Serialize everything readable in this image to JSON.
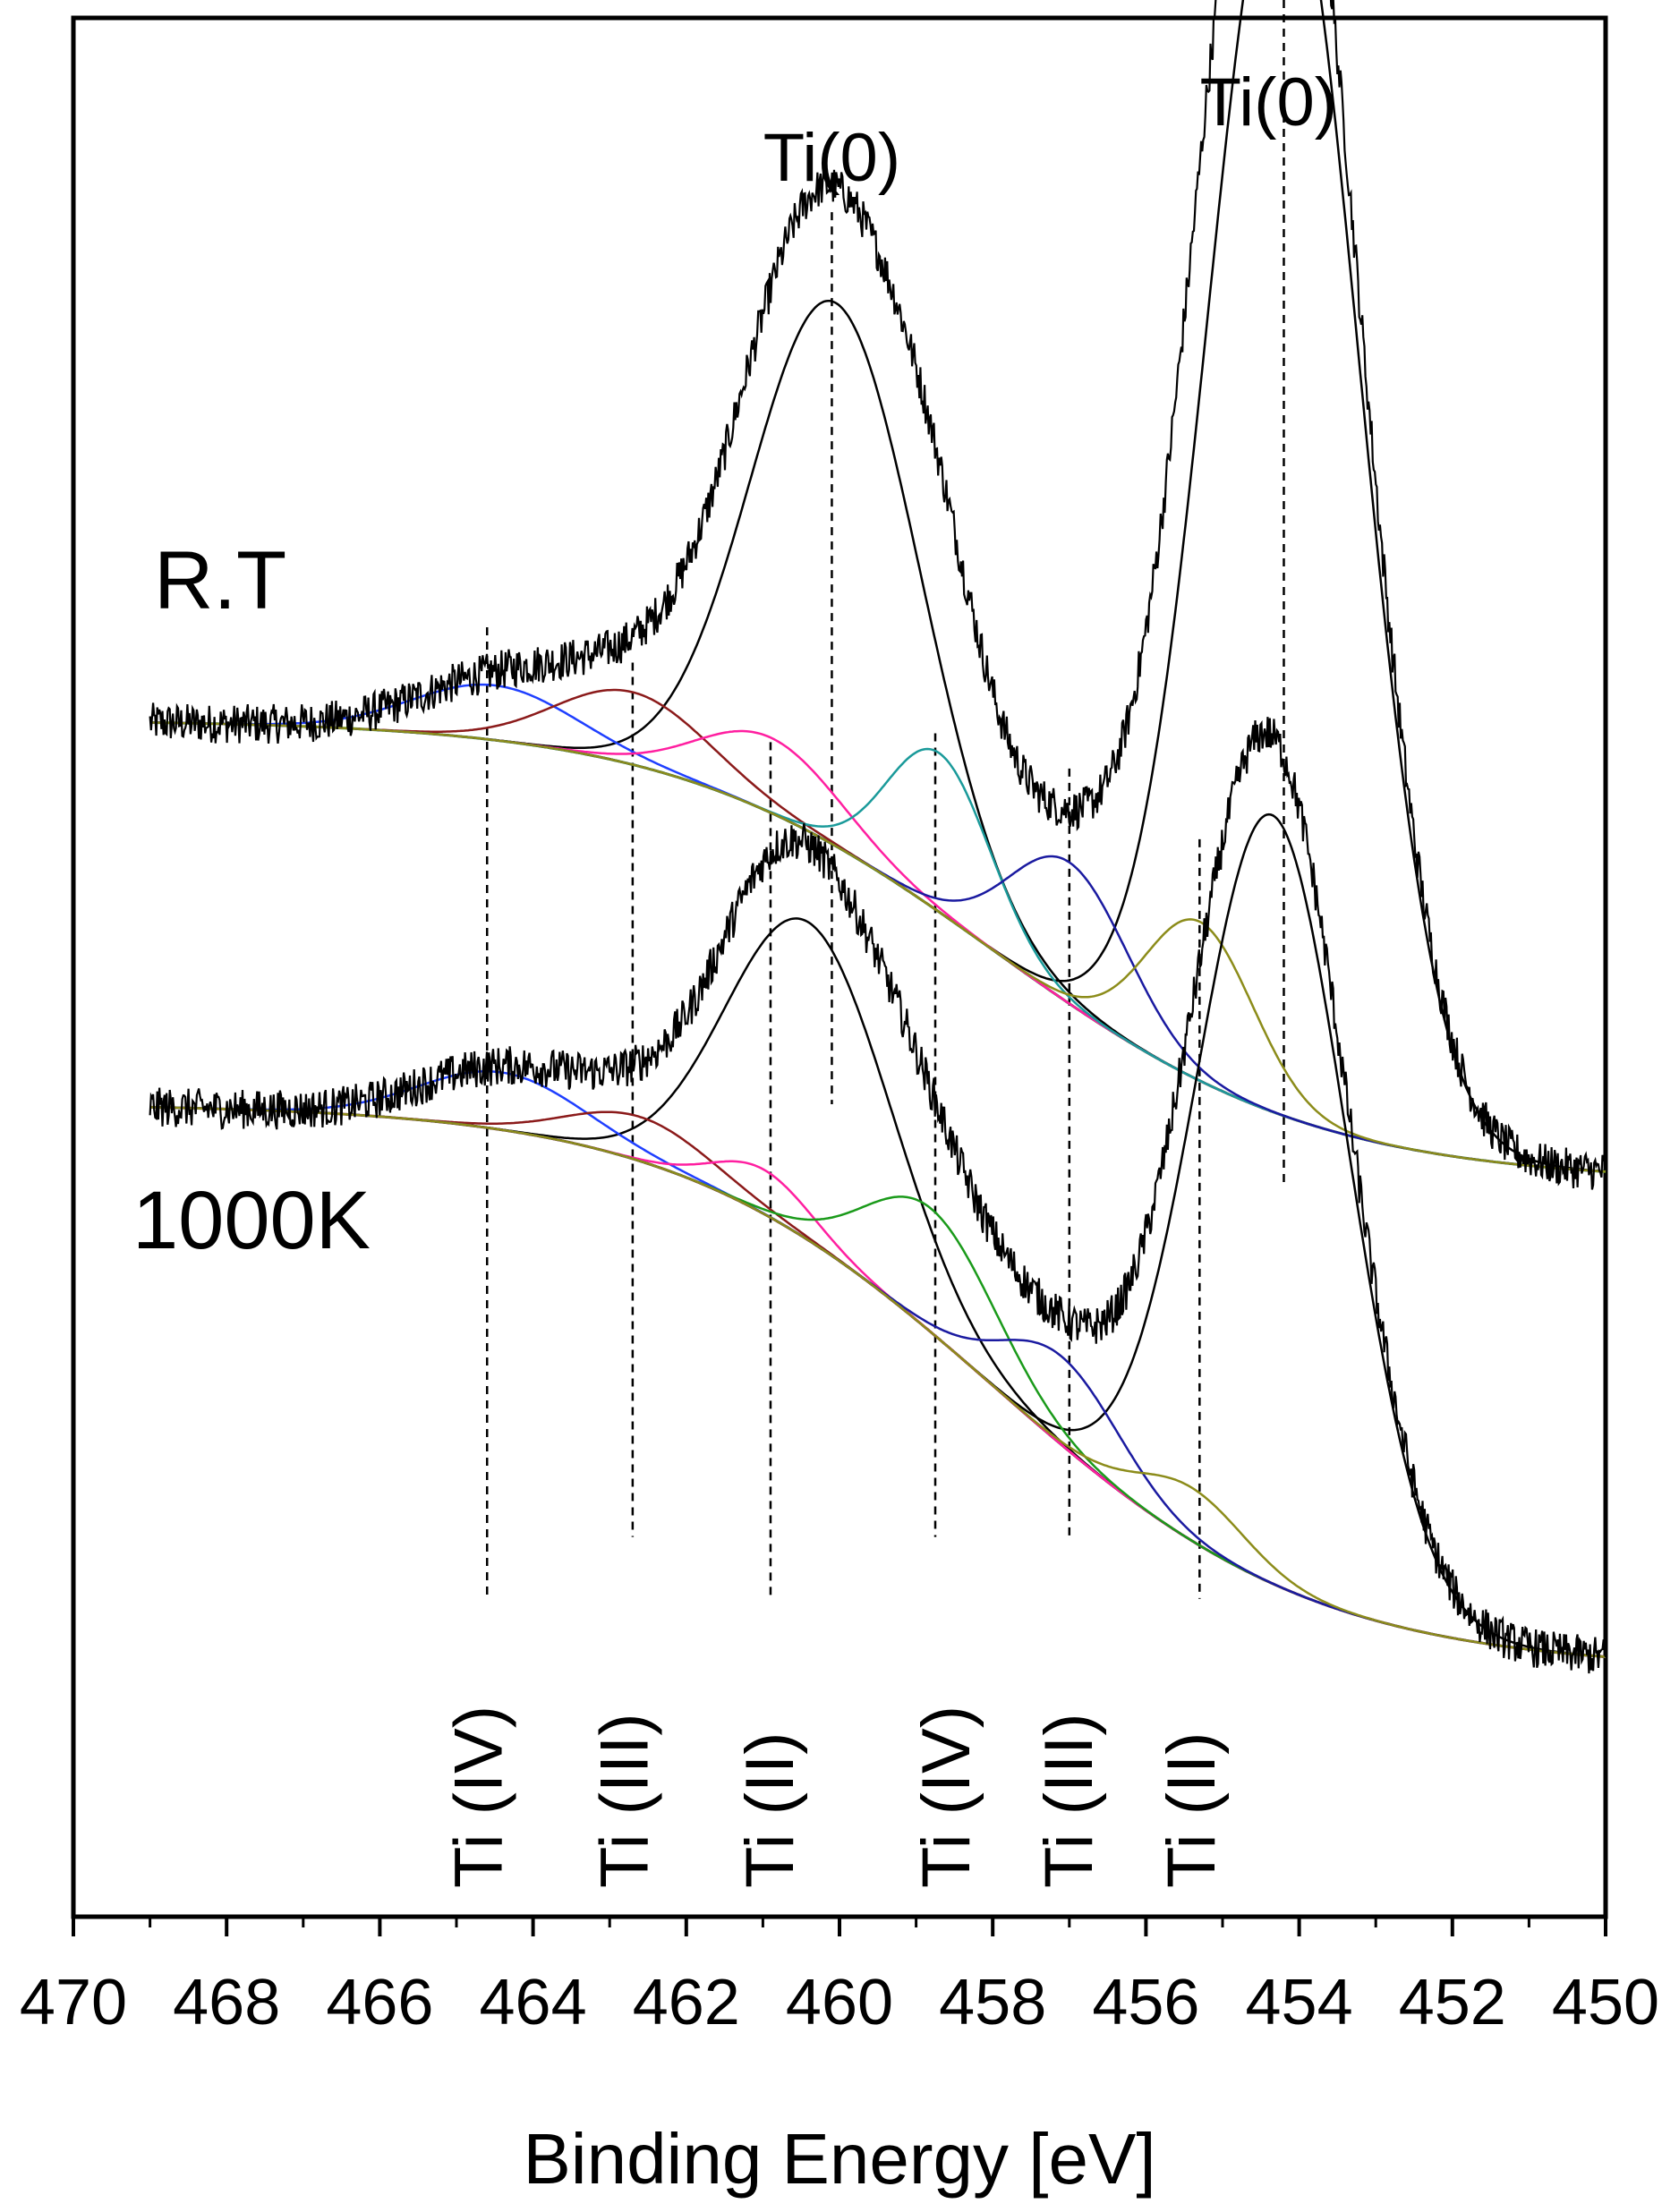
{
  "chart_data": {
    "type": "line",
    "title": "",
    "xlabel": "Binding Energy [eV]",
    "ylabel": "",
    "xlim": [
      470,
      450
    ],
    "x_reversed": true,
    "xticks": [
      470,
      468,
      466,
      464,
      462,
      460,
      458,
      456,
      454,
      452,
      450
    ],
    "yticks_shown": false,
    "ylim": [
      0,
      2.15
    ],
    "samples": [
      {
        "name": "R.T",
        "baseline_start": 1.355,
        "baseline_end": 0.832,
        "raw_data_range": [
          469,
          450
        ],
        "peaks": [
          {
            "label": "Ti(0)",
            "center": 460.05,
            "height": 0.615,
            "width": 1.55,
            "color": "#000000"
          },
          {
            "label": "Ti(0)",
            "center": 454.2,
            "height": 1.44,
            "width": 1.4,
            "color": "#000000"
          },
          {
            "label": "Ti (IV)",
            "center": 464.5,
            "height": 0.062,
            "width": 1.5,
            "color": "#1f3fff"
          },
          {
            "label": "Ti (III)",
            "center": 462.7,
            "height": 0.082,
            "width": 1.4,
            "color": "#8b1a1a"
          },
          {
            "label": "Ti (II)",
            "center": 460.9,
            "height": 0.085,
            "width": 1.3,
            "color": "#ff1fa0"
          },
          {
            "label": "Ti (IV)",
            "center": 458.7,
            "height": 0.18,
            "width": 0.95,
            "color": "#1a9a9a"
          },
          {
            "label": "Ti (III)",
            "center": 457.0,
            "height": 0.16,
            "width": 1.1,
            "color": "#1a1aa0"
          },
          {
            "label": "Ti (II)",
            "center": 455.3,
            "height": 0.18,
            "width": 1.0,
            "color": "#8c8c1a"
          }
        ],
        "background_color": "#1a9a1a"
      },
      {
        "name": "1000K",
        "baseline_start": 0.92,
        "baseline_end": 0.28,
        "raw_data_range": [
          469,
          450
        ],
        "peaks": [
          {
            "label": "Ti(0)",
            "center": 460.4,
            "height": 0.36,
            "width": 1.5,
            "color": "#000000"
          },
          {
            "label": "Ti(0)",
            "center": 454.35,
            "height": 0.87,
            "width": 1.4,
            "color": "#000000"
          },
          {
            "label": "Ti (IV)",
            "center": 464.4,
            "height": 0.065,
            "width": 1.5,
            "color": "#1f3fff"
          },
          {
            "label": "Ti (III)",
            "center": 462.6,
            "height": 0.05,
            "width": 1.3,
            "color": "#8b1a1a"
          },
          {
            "label": "Ti (II)",
            "center": 461.0,
            "height": 0.05,
            "width": 0.9,
            "color": "#ff1fa0"
          },
          {
            "label": "Ti (IV)",
            "center": 458.8,
            "height": 0.14,
            "width": 1.2,
            "color": "#1a9a1a"
          },
          {
            "label": "Ti (III)",
            "center": 457.1,
            "height": 0.1,
            "width": 1.1,
            "color": "#1a1aa0"
          },
          {
            "label": "Ti (II)",
            "center": 455.4,
            "height": 0.06,
            "width": 1.0,
            "color": "#8c8c1a"
          }
        ],
        "background_color": "#8b1a1a"
      }
    ],
    "reference_lines": [
      {
        "label": "Ti(0)",
        "x": 460.1,
        "y_from": 1.93,
        "y_to": 0.92
      },
      {
        "label": "Ti(0)",
        "x": 454.2,
        "y_from": 2.3,
        "y_to": 0.83
      },
      {
        "label": "Ti (IV)",
        "x": 464.6,
        "y_from": 1.46,
        "y_to": 0.36
      },
      {
        "label": "Ti (III)",
        "x": 462.7,
        "y_from": 1.42,
        "y_to": 0.43
      },
      {
        "label": "Ti (II)",
        "x": 460.9,
        "y_from": 1.33,
        "y_to": 0.36
      },
      {
        "label": "Ti (IV)",
        "x": 458.75,
        "y_from": 1.34,
        "y_to": 0.43
      },
      {
        "label": "Ti (III)",
        "x": 457.0,
        "y_from": 1.3,
        "y_to": 0.43
      },
      {
        "label": "Ti (II)",
        "x": 455.3,
        "y_from": 1.22,
        "y_to": 0.36
      }
    ],
    "annotations": [
      {
        "text": "Ti(0)",
        "x": 460.1,
        "position": "above"
      },
      {
        "text": "Ti(0)",
        "x": 454.4,
        "position": "above"
      },
      {
        "text": "Ti (IV)",
        "x": 464.7,
        "position": "bottom-vertical"
      },
      {
        "text": "Ti (III)",
        "x": 462.8,
        "position": "bottom-vertical"
      },
      {
        "text": "Ti (II)",
        "x": 460.9,
        "position": "bottom-vertical"
      },
      {
        "text": "Ti (IV)",
        "x": 458.6,
        "position": "bottom-vertical"
      },
      {
        "text": "Ti (III)",
        "x": 457.0,
        "position": "bottom-vertical"
      },
      {
        "text": "Ti (II)",
        "x": 455.4,
        "position": "bottom-vertical"
      }
    ],
    "sample_labels": [
      "R.T",
      "1000K"
    ],
    "legend": "none"
  }
}
